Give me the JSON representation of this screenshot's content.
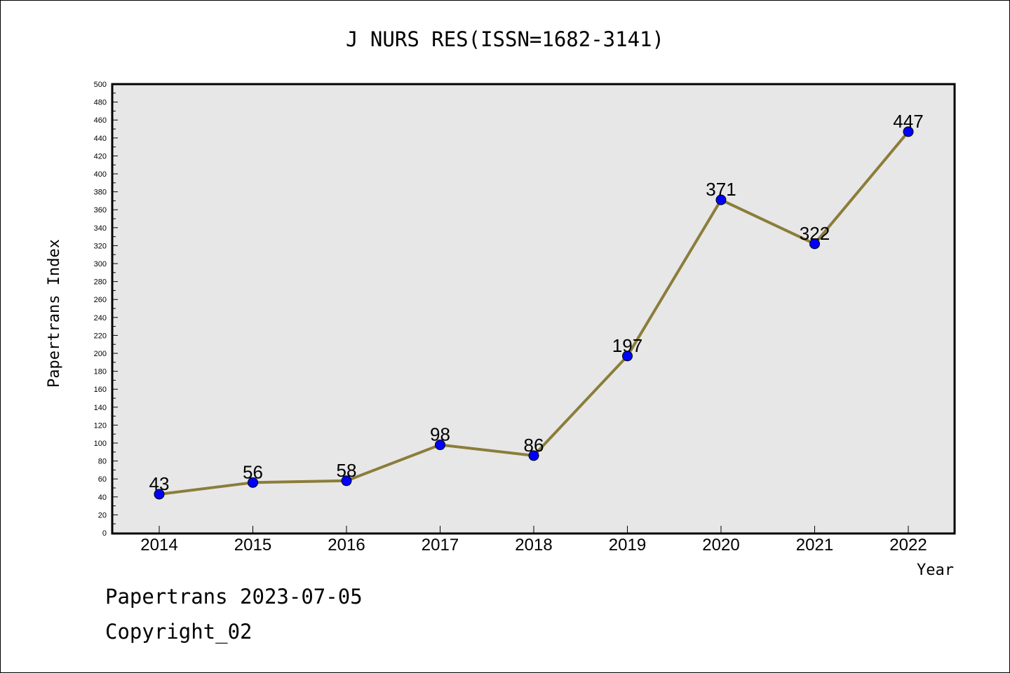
{
  "chart_data": {
    "type": "line",
    "title": "J NURS RES(ISSN=1682-3141)",
    "xlabel": "Year",
    "ylabel": "Papertrans Index",
    "categories": [
      "2014",
      "2015",
      "2016",
      "2017",
      "2018",
      "2019",
      "2020",
      "2021",
      "2022"
    ],
    "values": [
      43,
      56,
      58,
      98,
      86,
      197,
      371,
      322,
      447
    ],
    "data_labels": [
      "43",
      "56",
      "58",
      "98",
      "86",
      "197",
      "371",
      "322",
      "447"
    ],
    "ylim": [
      0,
      500
    ],
    "ytick_step": 20,
    "grid": false,
    "line_color": "#8B7D3A",
    "marker_color": "#0000FF",
    "plot_background": "#E7E7E7"
  },
  "footer": {
    "line1": "Papertrans 2023-07-05",
    "line2": "Copyright_02"
  }
}
